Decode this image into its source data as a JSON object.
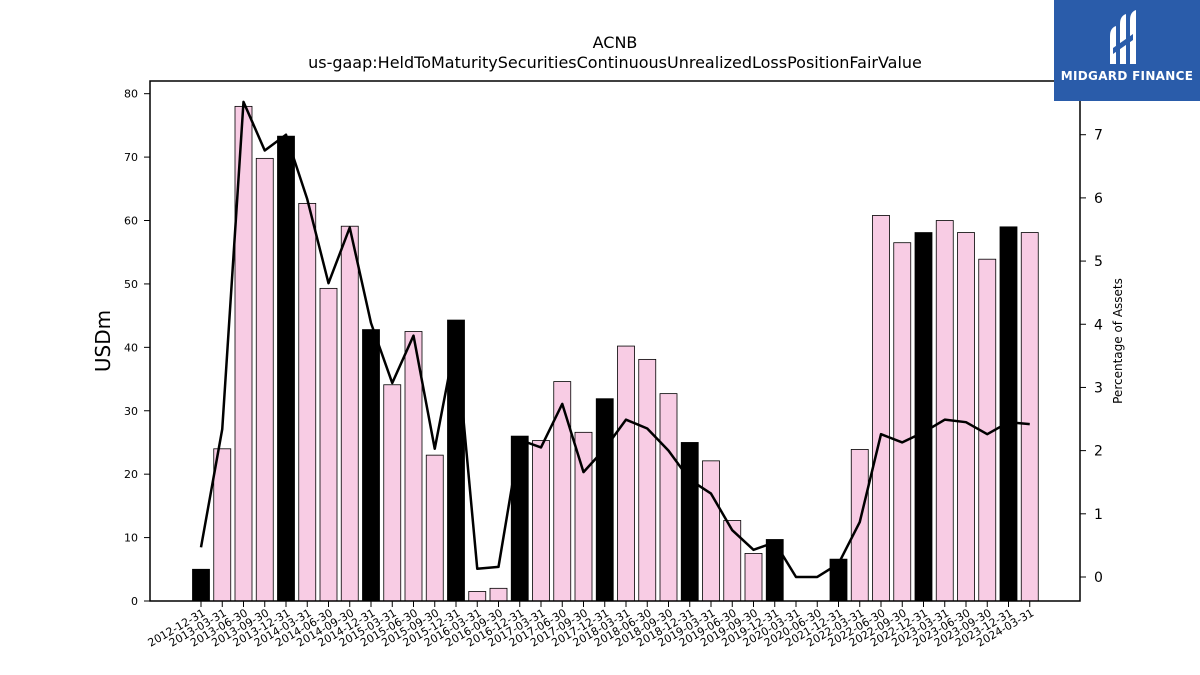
{
  "chart_data": {
    "type": "bar",
    "title": "ACNB",
    "subtitle": "us-gaap:HeldToMaturitySecuritiesContinuousUnrealizedLossPositionFairValue",
    "ylabel": "USDm",
    "y2label": "Percentage of Assets",
    "ylim": [
      0,
      82
    ],
    "y2lim": [
      -0.38,
      7.85
    ],
    "yticks": [
      0,
      10,
      20,
      30,
      40,
      50,
      60,
      70,
      80
    ],
    "y2ticks": [
      0,
      1,
      2,
      3,
      4,
      5,
      6,
      7
    ],
    "grid": false,
    "colors": {
      "bar_default": "#f8cce4",
      "bar_q4": "#000000",
      "line": "#000000"
    },
    "categories": [
      "2012-12-31",
      "2013-03-31",
      "2013-06-30",
      "2013-09-30",
      "2013-12-31",
      "2014-03-31",
      "2014-06-30",
      "2014-09-30",
      "2014-12-31",
      "2015-03-31",
      "2015-06-30",
      "2015-09-30",
      "2015-12-31",
      "2016-03-31",
      "2016-09-30",
      "2016-12-31",
      "2017-03-31",
      "2017-06-30",
      "2017-09-30",
      "2017-12-31",
      "2018-03-31",
      "2018-06-30",
      "2018-09-30",
      "2018-12-31",
      "2019-03-31",
      "2019-06-30",
      "2019-09-30",
      "2019-12-31",
      "2020-03-31",
      "2020-06-30",
      "2021-12-31",
      "2022-03-31",
      "2022-06-30",
      "2022-09-30",
      "2022-12-31",
      "2023-03-31",
      "2023-06-30",
      "2023-09-30",
      "2023-12-31",
      "2024-03-31"
    ],
    "series": [
      {
        "kind": "bar",
        "values": [
          5.0,
          24.0,
          78.0,
          69.8,
          73.3,
          62.7,
          49.3,
          59.1,
          42.8,
          34.1,
          42.5,
          23.0,
          44.3,
          1.5,
          2.0,
          26.0,
          25.3,
          34.6,
          26.6,
          31.9,
          40.2,
          38.1,
          32.7,
          25.0,
          22.1,
          12.7,
          7.5,
          9.7,
          0.0,
          0.0,
          6.6,
          23.9,
          60.8,
          56.5,
          58.1,
          60.0,
          58.1,
          53.9,
          59.0,
          58.1
        ]
      },
      {
        "kind": "line",
        "axis": "right",
        "values": [
          0.47,
          2.34,
          7.52,
          6.75,
          7.0,
          5.98,
          4.65,
          5.53,
          4.02,
          3.07,
          3.82,
          2.03,
          3.78,
          0.13,
          0.16,
          2.17,
          2.05,
          2.74,
          1.66,
          2.03,
          2.49,
          2.35,
          2.0,
          1.54,
          1.32,
          0.74,
          0.43,
          0.55,
          0.0,
          0.0,
          0.21,
          0.87,
          2.26,
          2.13,
          2.29,
          2.49,
          2.45,
          2.26,
          2.45,
          2.42
        ]
      }
    ]
  },
  "logo": {
    "text": "MIDGARD FINANCE"
  }
}
